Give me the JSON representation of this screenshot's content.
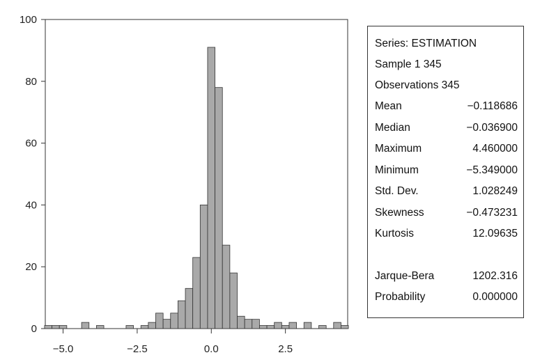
{
  "chart_data": {
    "type": "bar",
    "title": "",
    "xlabel": "",
    "ylabel": "",
    "xlim": [
      -5.6,
      4.6
    ],
    "ylim": [
      0,
      100
    ],
    "bin_width": 0.25,
    "x_ticks": [
      -5.0,
      -2.5,
      0.0,
      2.5
    ],
    "x_tick_labels": [
      "−5.0",
      "−2.5",
      "0.0",
      "2.5"
    ],
    "y_ticks": [
      0,
      20,
      40,
      60,
      80,
      100
    ],
    "y_tick_labels": [
      "0",
      "20",
      "40",
      "60",
      "80",
      "100"
    ],
    "grid": false,
    "bar_color": "#a9a9a9",
    "bins": [
      {
        "x": -5.5,
        "count": 1
      },
      {
        "x": -5.25,
        "count": 1
      },
      {
        "x": -5.0,
        "count": 1
      },
      {
        "x": -4.25,
        "count": 2
      },
      {
        "x": -3.75,
        "count": 1
      },
      {
        "x": -2.75,
        "count": 1
      },
      {
        "x": -2.25,
        "count": 1
      },
      {
        "x": -2.0,
        "count": 2
      },
      {
        "x": -1.75,
        "count": 5
      },
      {
        "x": -1.5,
        "count": 3
      },
      {
        "x": -1.25,
        "count": 5
      },
      {
        "x": -1.0,
        "count": 9
      },
      {
        "x": -0.75,
        "count": 13
      },
      {
        "x": -0.5,
        "count": 23
      },
      {
        "x": -0.25,
        "count": 40
      },
      {
        "x": 0.0,
        "count": 91
      },
      {
        "x": 0.25,
        "count": 78
      },
      {
        "x": 0.5,
        "count": 27
      },
      {
        "x": 0.75,
        "count": 18
      },
      {
        "x": 1.0,
        "count": 4
      },
      {
        "x": 1.25,
        "count": 3
      },
      {
        "x": 1.5,
        "count": 3
      },
      {
        "x": 1.75,
        "count": 1
      },
      {
        "x": 2.0,
        "count": 1
      },
      {
        "x": 2.25,
        "count": 2
      },
      {
        "x": 2.5,
        "count": 1
      },
      {
        "x": 2.75,
        "count": 2
      },
      {
        "x": 3.25,
        "count": 2
      },
      {
        "x": 3.75,
        "count": 1
      },
      {
        "x": 4.25,
        "count": 2
      },
      {
        "x": 4.5,
        "count": 1
      }
    ]
  },
  "stats": {
    "series": "Series: ESTIMATION",
    "sample": "Sample 1 345",
    "observations": "Observations 345",
    "rows": [
      {
        "label": "Mean",
        "value": "−0.118686"
      },
      {
        "label": "Median",
        "value": "−0.036900"
      },
      {
        "label": "Maximum",
        "value": "4.460000"
      },
      {
        "label": "Minimum",
        "value": "−5.349000"
      },
      {
        "label": "Std. Dev.",
        "value": "1.028249"
      },
      {
        "label": "Skewness",
        "value": "−0.473231"
      },
      {
        "label": "Kurtosis",
        "value": "12.09635"
      }
    ],
    "tests": [
      {
        "label": "Jarque-Bera",
        "value": "1202.316"
      },
      {
        "label": "Probability",
        "value": "0.000000"
      }
    ]
  }
}
